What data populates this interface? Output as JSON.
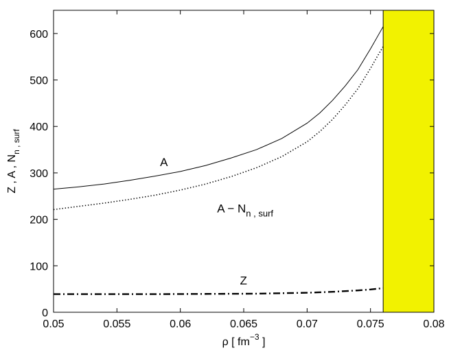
{
  "chart_data": {
    "type": "line",
    "xlabel": {
      "main": "ρ  [ fm",
      "sup": "−3",
      "tail": " ]"
    },
    "ylabel": {
      "main": "Z , A , N",
      "sub": "n , surf"
    },
    "xlim": [
      0.05,
      0.08
    ],
    "ylim": [
      0,
      650
    ],
    "xticks": [
      0.05,
      0.055,
      0.06,
      0.065,
      0.07,
      0.075,
      0.08
    ],
    "xtick_labels": [
      "0.05",
      "0.055",
      "0.06",
      "0.065",
      "0.07",
      "0.075",
      "0.08"
    ],
    "yticks": [
      0,
      100,
      200,
      300,
      400,
      500,
      600
    ],
    "ytick_labels": [
      "0",
      "100",
      "200",
      "300",
      "400",
      "500",
      "600"
    ],
    "grid": false,
    "shaded_region": {
      "x_start": 0.076,
      "x_end": 0.08,
      "color": "#f2f200"
    },
    "annotations": [
      {
        "id": "A",
        "text": "A",
        "sub": ""
      },
      {
        "id": "AN",
        "text": "A − N",
        "sub": "n , surf"
      },
      {
        "id": "Z",
        "text": "Z",
        "sub": ""
      }
    ],
    "series": [
      {
        "id": "A",
        "style": "solid",
        "x": [
          0.05,
          0.052,
          0.054,
          0.056,
          0.058,
          0.06,
          0.062,
          0.064,
          0.066,
          0.068,
          0.07,
          0.071,
          0.072,
          0.073,
          0.074,
          0.075,
          0.0755,
          0.076
        ],
        "y": [
          265,
          270,
          276,
          284,
          293,
          303,
          316,
          332,
          350,
          374,
          407,
          429,
          456,
          487,
          522,
          567,
          591,
          615
        ]
      },
      {
        "id": "AN",
        "style": "dotted",
        "x": [
          0.05,
          0.052,
          0.054,
          0.056,
          0.058,
          0.06,
          0.062,
          0.064,
          0.066,
          0.068,
          0.07,
          0.071,
          0.072,
          0.073,
          0.074,
          0.075,
          0.0755,
          0.076
        ],
        "y": [
          221,
          228,
          235,
          243,
          252,
          263,
          276,
          292,
          311,
          335,
          367,
          389,
          415,
          446,
          481,
          525,
          549,
          572
        ]
      },
      {
        "id": "Z",
        "style": "dashdot",
        "x": [
          0.05,
          0.054,
          0.058,
          0.062,
          0.066,
          0.068,
          0.07,
          0.072,
          0.074,
          0.075,
          0.076
        ],
        "y": [
          39,
          39,
          39,
          39.5,
          40,
          41,
          42,
          44,
          47,
          49,
          52
        ]
      }
    ]
  }
}
